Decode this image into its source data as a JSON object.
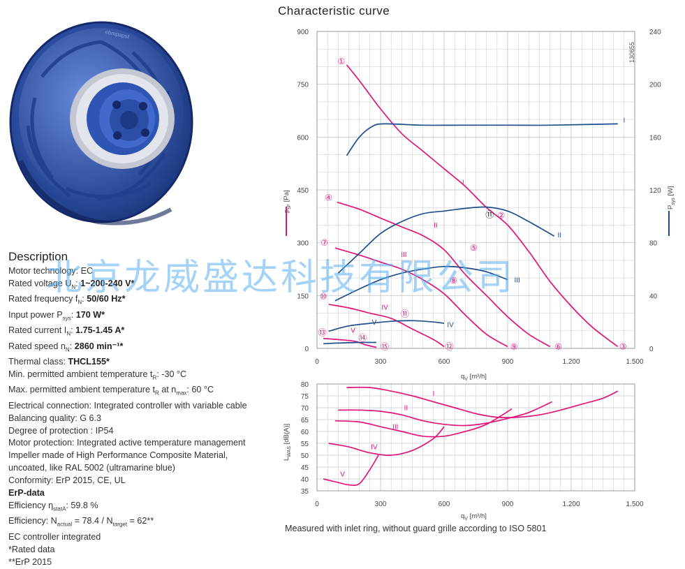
{
  "chart_title": "Characteristic curve",
  "figure_id": "130655",
  "description": {
    "heading": "Description",
    "lines": [
      {
        "label": "Motor technology: EC"
      },
      {
        "label": "Rated voltage U",
        "sub": "N",
        "mid": ": ",
        "value": "1~200-240 V*"
      },
      {
        "label": "Rated frequency f",
        "sub": "N",
        "mid": ": ",
        "value": "50/60 Hz*"
      },
      {
        "label": "Input power P",
        "sub": "sys",
        "mid": ": ",
        "value": "170 W*"
      },
      {
        "label": "Rated current I",
        "sub": "N",
        "mid": ": ",
        "value": "1.75-1.45 A*"
      },
      {
        "label": "Rated speed n",
        "sub": "N",
        "mid": ": ",
        "value": "2860 min⁻¹*"
      },
      {
        "label": "Thermal class: ",
        "value": "THCL155*"
      },
      {
        "label": "Min. permitted ambient temperature t",
        "sub": "R",
        "mid": ": -30 °C"
      },
      {
        "label": "Max. permitted ambient temperature t",
        "sub": "R",
        "mid": " at n",
        "sub2": "max",
        "tail": ": 60 °C"
      },
      {
        "label": "Electrical connection: Integrated controller with variable cable"
      },
      {
        "label": "Balancing quality: G 6.3"
      },
      {
        "label": "Degree of protection : IP54"
      },
      {
        "label": "Motor protection: Integrated active temperature management"
      },
      {
        "label": "Impeller made of High Performance Composite Material,"
      },
      {
        "label": "uncoated, like RAL 5002 (ultramarine blue)"
      },
      {
        "label": "Conformity: ErP 2015, CE, UL"
      }
    ],
    "erp_heading": "ErP-data",
    "erp_lines": [
      {
        "label": "Efficiency η",
        "sub": "statA",
        "mid": ": 59.8 %"
      },
      {
        "label": "Efficiency: N",
        "sub": "actual",
        "mid": " = 78.4 / N",
        "sub2": "target",
        "tail": " = 62**"
      },
      {
        "label": "EC controller integrated"
      },
      {
        "label": "*Rated data"
      },
      {
        "label": "**ErP 2015"
      }
    ]
  },
  "watermark": "北京龙威盛达科技有限公司",
  "footnote": "Measured with inlet ring, without guard grille according to ISO 5801",
  "colors": {
    "pressure": "#e0157a",
    "power": "#1f4e8c",
    "grid": "#c8c8c8",
    "impeller": "#2c4fa3"
  },
  "chart_data": [
    {
      "type": "line",
      "x_label": "q",
      "x_label_sub": "V",
      "x_unit": " [m³/h]",
      "y_label": "p",
      "y_label_sub": "sF",
      "y_unit": " [Pa]",
      "y2_label": "P",
      "y2_label_sub": "sys",
      "y2_unit": " [W]",
      "xlim": [
        0,
        1500
      ],
      "ylim": [
        0,
        900
      ],
      "y2lim": [
        0,
        240
      ],
      "x_ticks": [
        0,
        300,
        600,
        900,
        1200,
        1500
      ],
      "x_tick_labels": [
        "0",
        "300",
        "600",
        "900",
        "1.200",
        "1.500"
      ],
      "y_ticks": [
        0,
        150,
        300,
        450,
        600,
        750,
        900
      ],
      "y2_ticks": [
        0,
        40,
        80,
        120,
        160,
        200,
        240
      ],
      "grid": true,
      "pressure_series": [
        {
          "name": "I",
          "label_at": [
            690,
            465
          ],
          "points": [
            [
              140,
              805
            ],
            [
              200,
              760
            ],
            [
              300,
              680
            ],
            [
              400,
              610
            ],
            [
              500,
              560
            ],
            [
              600,
              510
            ],
            [
              700,
              460
            ],
            [
              800,
              400
            ],
            [
              900,
              350
            ],
            [
              1000,
              275
            ],
            [
              1100,
              190
            ],
            [
              1200,
              120
            ],
            [
              1300,
              60
            ],
            [
              1420,
              5
            ]
          ]
        },
        {
          "name": "II",
          "label_at": [
            560,
            343
          ],
          "points": [
            [
              95,
              415
            ],
            [
              200,
              395
            ],
            [
              300,
              370
            ],
            [
              400,
              345
            ],
            [
              500,
              320
            ],
            [
              600,
              280
            ],
            [
              700,
              210
            ],
            [
              800,
              150
            ],
            [
              900,
              90
            ],
            [
              1000,
              40
            ],
            [
              1100,
              5
            ]
          ]
        },
        {
          "name": "III",
          "label_at": [
            410,
            260
          ],
          "points": [
            [
              85,
              285
            ],
            [
              200,
              265
            ],
            [
              300,
              245
            ],
            [
              400,
              225
            ],
            [
              500,
              195
            ],
            [
              600,
              155
            ],
            [
              700,
              95
            ],
            [
              800,
              40
            ],
            [
              900,
              5
            ]
          ]
        },
        {
          "name": "IV",
          "label_at": [
            320,
            110
          ],
          "points": [
            [
              55,
              125
            ],
            [
              150,
              115
            ],
            [
              250,
              100
            ],
            [
              350,
              85
            ],
            [
              450,
              55
            ],
            [
              550,
              25
            ],
            [
              600,
              5
            ]
          ]
        },
        {
          "name": "V",
          "label_at": [
            170,
            45
          ],
          "points": [
            [
              30,
              28
            ],
            [
              100,
              25
            ],
            [
              180,
              20
            ],
            [
              230,
              10
            ],
            [
              280,
              3
            ]
          ]
        }
      ],
      "power_series": [
        {
          "name": "I",
          "label_at": [
            1450,
            171
          ],
          "points": [
            [
              140,
              146
            ],
            [
              200,
              160
            ],
            [
              260,
              168
            ],
            [
              320,
              170
            ],
            [
              500,
              169
            ],
            [
              700,
              169
            ],
            [
              900,
              169
            ],
            [
              1100,
              169
            ],
            [
              1420,
              170
            ]
          ]
        },
        {
          "name": "II",
          "label_at": [
            1145,
            84
          ],
          "points": [
            [
              100,
              57
            ],
            [
              200,
              72
            ],
            [
              300,
              87
            ],
            [
              400,
              96
            ],
            [
              500,
              102
            ],
            [
              600,
              104
            ],
            [
              700,
              106
            ],
            [
              800,
              107
            ],
            [
              900,
              104
            ],
            [
              1000,
              96
            ],
            [
              1120,
              85
            ]
          ]
        },
        {
          "name": "III",
          "label_at": [
            945,
            50
          ],
          "points": [
            [
              85,
              36
            ],
            [
              200,
              45
            ],
            [
              300,
              52
            ],
            [
              400,
              57
            ],
            [
              500,
              60
            ],
            [
              600,
              62
            ],
            [
              700,
              61
            ],
            [
              800,
              58
            ],
            [
              900,
              52
            ]
          ]
        },
        {
          "name": "IV",
          "label_at": [
            630,
            16
          ],
          "points": [
            [
              55,
              13
            ],
            [
              150,
              17
            ],
            [
              250,
              19
            ],
            [
              350,
              20.5
            ],
            [
              450,
              21
            ],
            [
              550,
              20
            ],
            [
              600,
              19
            ]
          ]
        },
        {
          "name": "V",
          "label_at": [
            270,
            18
          ],
          "points": [
            [
              30,
              3.5
            ],
            [
              100,
              4
            ],
            [
              200,
              4.5
            ],
            [
              280,
              4.5
            ]
          ]
        }
      ],
      "operating_points": [
        {
          "label": "①",
          "x": 115,
          "y": 815,
          "style": "pressure"
        },
        {
          "label": "②",
          "x": 870,
          "y": 378,
          "style": "pressure"
        },
        {
          "label": "③",
          "x": 1445,
          "y": 5,
          "style": "pressure"
        },
        {
          "label": "④",
          "x": 55,
          "y": 428,
          "style": "pressure"
        },
        {
          "label": "⑤",
          "x": 740,
          "y": 285,
          "style": "pressure"
        },
        {
          "label": "⑥",
          "x": 1140,
          "y": 5,
          "style": "pressure"
        },
        {
          "label": "⑦",
          "x": 35,
          "y": 300,
          "style": "pressure"
        },
        {
          "label": "⑧",
          "x": 645,
          "y": 192,
          "style": "pressure"
        },
        {
          "label": "⑨",
          "x": 930,
          "y": 5,
          "style": "pressure"
        },
        {
          "label": "⑩",
          "x": 30,
          "y": 148,
          "style": "pressure"
        },
        {
          "label": "⑪",
          "x": 415,
          "y": 98,
          "style": "pressure"
        },
        {
          "label": "⑫",
          "x": 625,
          "y": 5,
          "style": "pressure"
        },
        {
          "label": "⑬",
          "x": 25,
          "y": 45,
          "style": "pressure"
        },
        {
          "label": "⑭",
          "x": 215,
          "y": 30,
          "style": "pressure"
        },
        {
          "label": "⑮",
          "x": 320,
          "y": 5,
          "style": "pressure"
        },
        {
          "label": "⑪",
          "x": 815,
          "y": 380,
          "style": "power"
        }
      ]
    },
    {
      "type": "line",
      "x_label": "q",
      "x_label_sub": "V",
      "x_unit": " [m³/h]",
      "y_label": "L",
      "y_label_sub": "WAS",
      "y_unit": " [dB(A)]",
      "xlim": [
        0,
        1500
      ],
      "ylim": [
        35,
        80
      ],
      "x_ticks": [
        0,
        300,
        600,
        900,
        1200,
        1500
      ],
      "x_tick_labels": [
        "0",
        "300",
        "600",
        "900",
        "1.200",
        "1.500"
      ],
      "y_ticks": [
        35,
        40,
        45,
        50,
        55,
        60,
        65,
        70,
        75,
        80
      ],
      "grid": true,
      "series": [
        {
          "name": "I",
          "label_at": [
            550,
            75
          ],
          "points": [
            [
              140,
              78.5
            ],
            [
              250,
              78.5
            ],
            [
              350,
              77
            ],
            [
              450,
              75
            ],
            [
              550,
              72.5
            ],
            [
              650,
              70
            ],
            [
              750,
              67.5
            ],
            [
              850,
              66
            ],
            [
              950,
              66
            ],
            [
              1050,
              67
            ],
            [
              1150,
              69
            ],
            [
              1250,
              71.5
            ],
            [
              1350,
              74
            ],
            [
              1420,
              77
            ]
          ]
        },
        {
          "name": "II",
          "label_at": [
            420,
            69
          ],
          "points": [
            [
              100,
              69
            ],
            [
              200,
              69
            ],
            [
              300,
              68.5
            ],
            [
              400,
              67
            ],
            [
              500,
              64.5
            ],
            [
              600,
              63
            ],
            [
              700,
              62.5
            ],
            [
              800,
              63.5
            ],
            [
              900,
              65.5
            ],
            [
              1000,
              68
            ],
            [
              1110,
              72.5
            ]
          ]
        },
        {
          "name": "III",
          "label_at": [
            370,
            61
          ],
          "points": [
            [
              85,
              64.5
            ],
            [
              200,
              64
            ],
            [
              300,
              62
            ],
            [
              400,
              60
            ],
            [
              500,
              58
            ],
            [
              600,
              58
            ],
            [
              700,
              60
            ],
            [
              800,
              63
            ],
            [
              920,
              69.5
            ]
          ]
        },
        {
          "name": "IV",
          "label_at": [
            270,
            52.5
          ],
          "points": [
            [
              55,
              55
            ],
            [
              150,
              53.5
            ],
            [
              250,
              51
            ],
            [
              350,
              50
            ],
            [
              450,
              52
            ],
            [
              550,
              57
            ],
            [
              600,
              62
            ]
          ]
        },
        {
          "name": "V",
          "label_at": [
            120,
            41
          ],
          "points": [
            [
              30,
              40
            ],
            [
              100,
              38.5
            ],
            [
              150,
              37.5
            ],
            [
              200,
              38
            ],
            [
              250,
              44
            ],
            [
              290,
              50
            ]
          ]
        }
      ]
    }
  ]
}
